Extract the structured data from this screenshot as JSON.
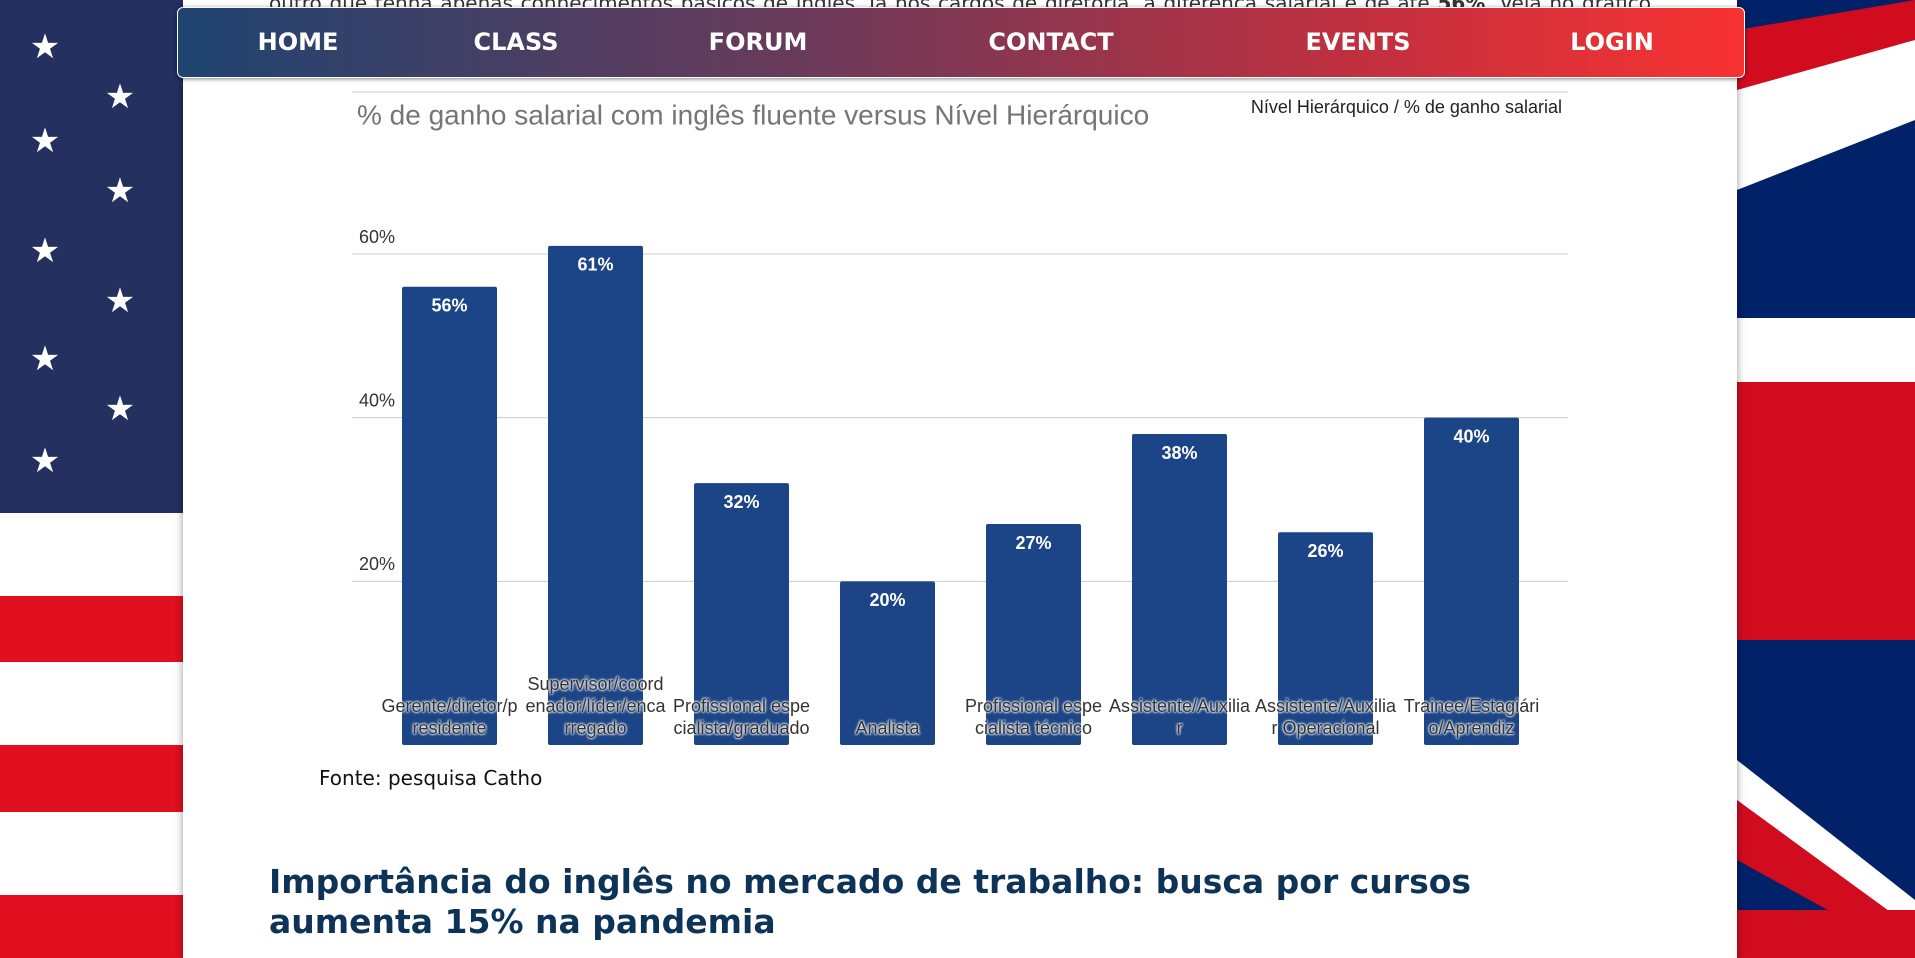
{
  "intro": {
    "before": "outro que tenha apenas conhecimentos básicos de inglês. Já nos cargos de diretoria, a diferença salarial é de até ",
    "bold": "56%",
    "after": ". Veja no gráfico abaixo:"
  },
  "nav": [
    "HOME",
    "CLASS",
    "FORUM",
    "CONTACT",
    "EVENTS",
    "LOGIN"
  ],
  "chart_data": {
    "type": "bar",
    "title": "% de ganho salarial com inglês fluente versus Nível Hierárquico",
    "legend": "Nível Hierárquico / % de ganho salarial",
    "categories": [
      "Gerente/diretor/presidente",
      "Supervisor/coordenador/líder/encarregado",
      "Profissional especialista/graduado",
      "Analista",
      "Profissional especialista técnico",
      "Assistente/Auxiliar",
      "Assistente/Auxiliar Operacional",
      "Trainee/Estagiário/Aprendiz"
    ],
    "values": [
      56,
      61,
      32,
      20,
      27,
      38,
      26,
      40
    ],
    "value_labels": [
      "56%",
      "61%",
      "32%",
      "20%",
      "27%",
      "38%",
      "26%",
      "40%"
    ],
    "color": "#1c4587",
    "ylim": [
      0,
      60
    ],
    "yticks": [
      {
        "value": 20,
        "label": "20%"
      },
      {
        "value": 40,
        "label": "40%"
      },
      {
        "value": 60,
        "label": "60%"
      }
    ],
    "grid": true
  },
  "source": "Fonte: pesquisa Catho",
  "heading": "Importância do inglês no mercado de trabalho: busca por cursos aumenta 15% na pandemia"
}
